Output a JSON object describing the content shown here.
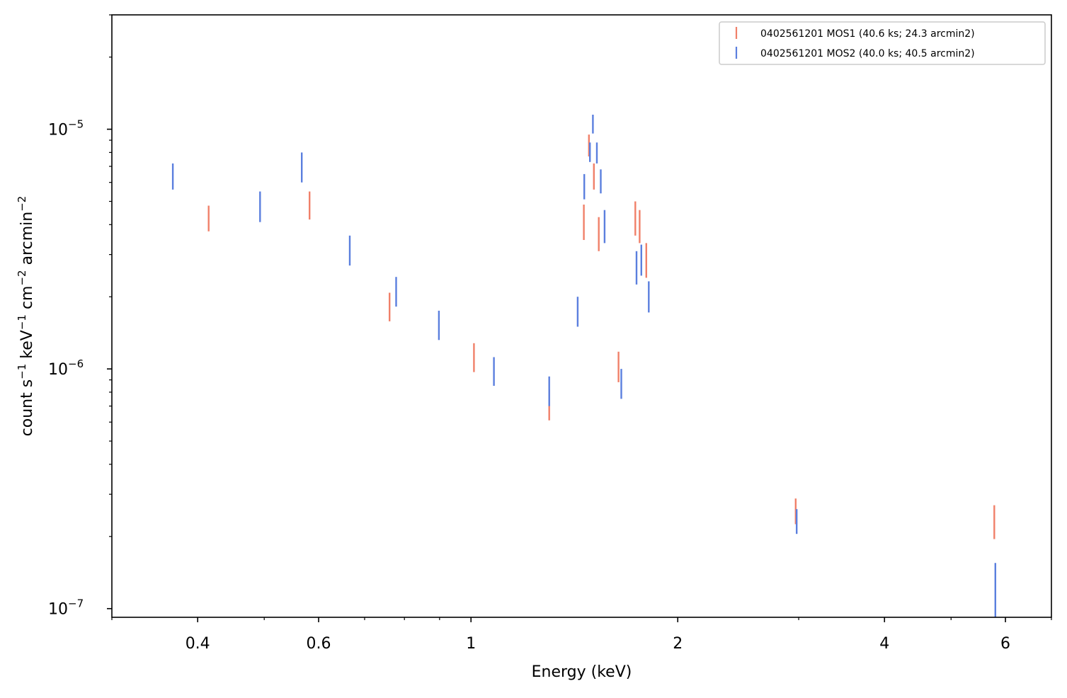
{
  "chart_data": {
    "type": "scatter",
    "title": "",
    "xlabel": "Energy (keV)",
    "ylabel": {
      "parts": [
        {
          "text": "count s",
          "sup": false
        },
        {
          "text": "−1",
          "sup": true
        },
        {
          "text": " keV",
          "sup": false
        },
        {
          "text": "−1",
          "sup": true
        },
        {
          "text": " cm",
          "sup": false
        },
        {
          "text": "−2",
          "sup": true
        },
        {
          "text": " arcmin",
          "sup": false
        },
        {
          "text": "−2",
          "sup": true
        }
      ]
    },
    "x_scale": "log",
    "y_scale": "log",
    "xlim": [
      0.3,
      7.0
    ],
    "ylim": [
      9.2e-08,
      3e-05
    ],
    "x_major_ticks": [
      {
        "value": 0.4,
        "label": "0.4"
      },
      {
        "value": 0.6,
        "label": "0.6"
      },
      {
        "value": 1,
        "label": "1"
      },
      {
        "value": 2,
        "label": "2"
      },
      {
        "value": 4,
        "label": "4"
      },
      {
        "value": 6,
        "label": "6"
      }
    ],
    "x_minor_ticks": [
      0.3,
      0.5,
      0.7,
      0.8,
      0.9,
      3,
      5,
      7
    ],
    "y_major_ticks": [
      {
        "value": 1e-07,
        "mantissa": "10",
        "exponent": "−7"
      },
      {
        "value": 1e-06,
        "mantissa": "10",
        "exponent": "−6"
      },
      {
        "value": 1e-05,
        "mantissa": "10",
        "exponent": "−5"
      }
    ],
    "y_minor_ticks": [
      2e-07,
      3e-07,
      4e-07,
      5e-07,
      6e-07,
      7e-07,
      8e-07,
      9e-07,
      2e-06,
      3e-06,
      4e-06,
      5e-06,
      6e-06,
      7e-06,
      8e-06,
      9e-06,
      2e-05,
      3e-05
    ],
    "grid": false,
    "legend_position": "top-right",
    "series": [
      {
        "name": "0402561201 MOS1 (40.6 ks; 24.3 arcmin2)",
        "color": "#f08069",
        "points": [
          {
            "x": 0.415,
            "y_low": 3.75e-06,
            "y_high": 4.8e-06
          },
          {
            "x": 0.582,
            "y_low": 4.2e-06,
            "y_high": 5.5e-06
          },
          {
            "x": 0.761,
            "y_low": 1.58e-06,
            "y_high": 2.08e-06
          },
          {
            "x": 1.01,
            "y_low": 9.7e-07,
            "y_high": 1.28e-06
          },
          {
            "x": 1.3,
            "y_low": 6.1e-07,
            "y_high": 8.2e-07
          },
          {
            "x": 1.46,
            "y_low": 3.45e-06,
            "y_high": 4.85e-06
          },
          {
            "x": 1.485,
            "y_low": 7.7e-06,
            "y_high": 9.5e-06
          },
          {
            "x": 1.51,
            "y_low": 5.6e-06,
            "y_high": 7.2e-06
          },
          {
            "x": 1.535,
            "y_low": 3.1e-06,
            "y_high": 4.3e-06
          },
          {
            "x": 1.64,
            "y_low": 8.8e-07,
            "y_high": 1.18e-06
          },
          {
            "x": 1.735,
            "y_low": 3.6e-06,
            "y_high": 5e-06
          },
          {
            "x": 1.76,
            "y_low": 3.35e-06,
            "y_high": 4.6e-06
          },
          {
            "x": 1.8,
            "y_low": 2.4e-06,
            "y_high": 3.35e-06
          },
          {
            "x": 2.97,
            "y_low": 2.25e-07,
            "y_high": 2.88e-07
          },
          {
            "x": 5.78,
            "y_low": 1.95e-07,
            "y_high": 2.7e-07
          }
        ]
      },
      {
        "name": "0402561201 MOS2 (40.0 ks; 40.5 arcmin2)",
        "color": "#5b7fde",
        "points": [
          {
            "x": 0.368,
            "y_low": 5.6e-06,
            "y_high": 7.2e-06
          },
          {
            "x": 0.493,
            "y_low": 4.1e-06,
            "y_high": 5.5e-06
          },
          {
            "x": 0.567,
            "y_low": 6e-06,
            "y_high": 8e-06
          },
          {
            "x": 0.666,
            "y_low": 2.7e-06,
            "y_high": 3.6e-06
          },
          {
            "x": 0.778,
            "y_low": 1.82e-06,
            "y_high": 2.42e-06
          },
          {
            "x": 0.898,
            "y_low": 1.32e-06,
            "y_high": 1.75e-06
          },
          {
            "x": 1.08,
            "y_low": 8.5e-07,
            "y_high": 1.12e-06
          },
          {
            "x": 1.3,
            "y_low": 7e-07,
            "y_high": 9.3e-07
          },
          {
            "x": 1.43,
            "y_low": 1.5e-06,
            "y_high": 2e-06
          },
          {
            "x": 1.462,
            "y_low": 5.1e-06,
            "y_high": 6.5e-06
          },
          {
            "x": 1.49,
            "y_low": 7.3e-06,
            "y_high": 8.8e-06
          },
          {
            "x": 1.505,
            "y_low": 9.6e-06,
            "y_high": 1.15e-05
          },
          {
            "x": 1.525,
            "y_low": 7.2e-06,
            "y_high": 8.8e-06
          },
          {
            "x": 1.545,
            "y_low": 5.4e-06,
            "y_high": 6.8e-06
          },
          {
            "x": 1.565,
            "y_low": 3.35e-06,
            "y_high": 4.6e-06
          },
          {
            "x": 1.655,
            "y_low": 7.5e-07,
            "y_high": 1e-06
          },
          {
            "x": 1.742,
            "y_low": 2.25e-06,
            "y_high": 3.1e-06
          },
          {
            "x": 1.77,
            "y_low": 2.45e-06,
            "y_high": 3.3e-06
          },
          {
            "x": 1.815,
            "y_low": 1.72e-06,
            "y_high": 2.32e-06
          },
          {
            "x": 2.98,
            "y_low": 2.05e-07,
            "y_high": 2.6e-07
          },
          {
            "x": 5.8,
            "y_low": 9.2e-08,
            "y_high": 1.55e-07
          }
        ]
      }
    ]
  }
}
